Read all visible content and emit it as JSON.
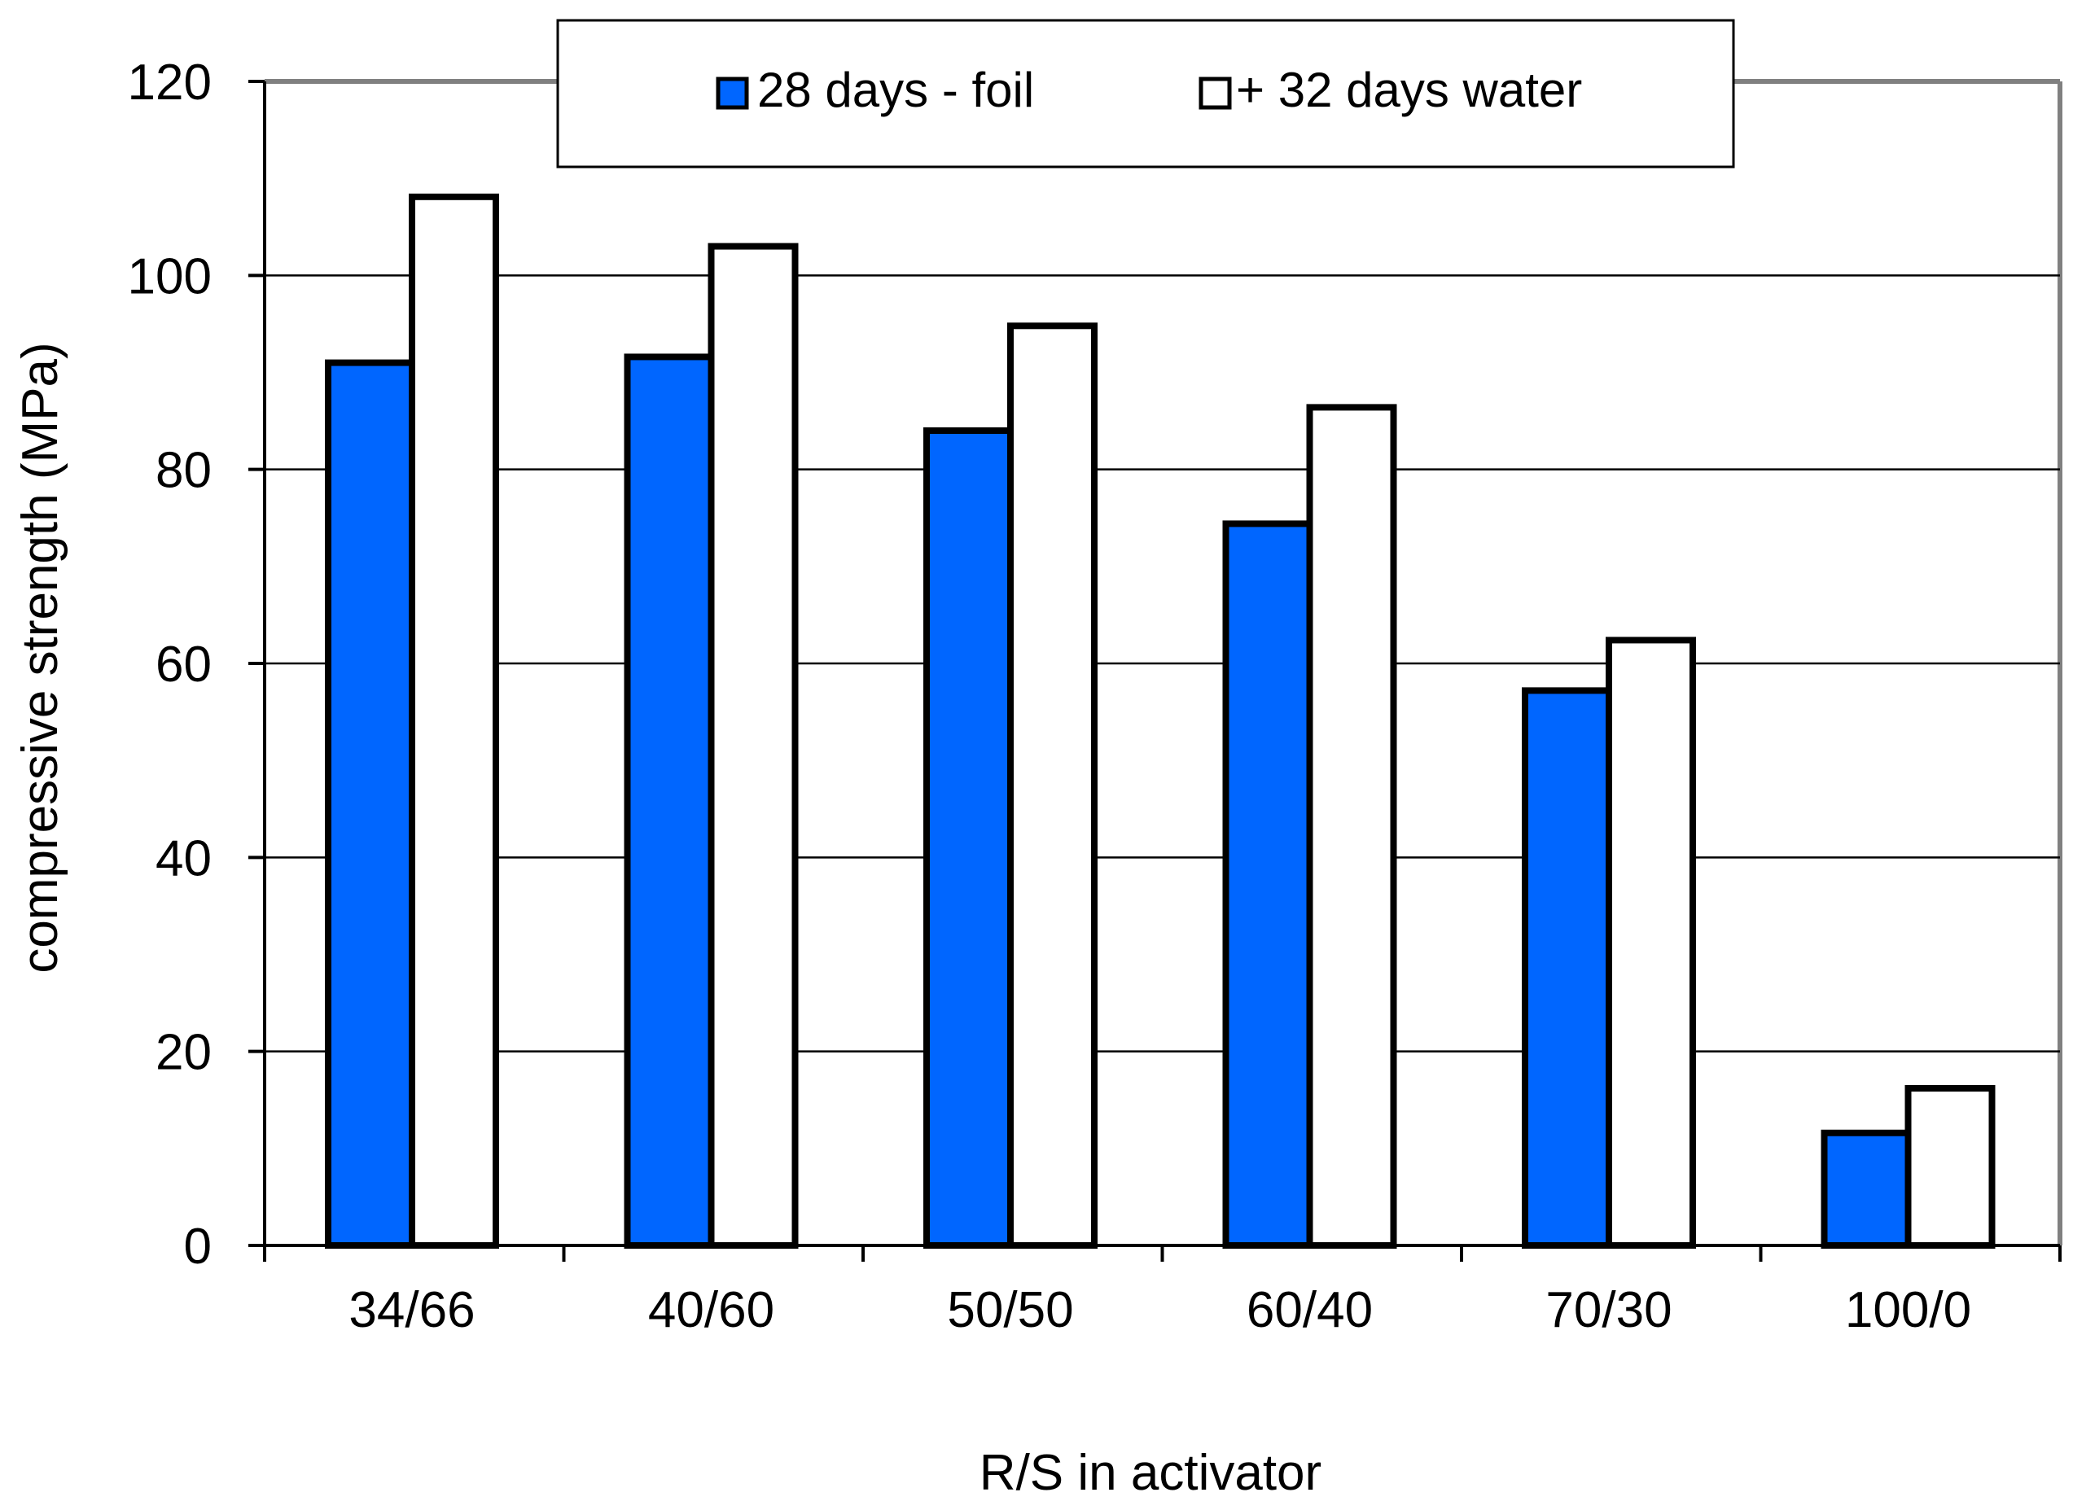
{
  "chart_data": {
    "type": "bar",
    "title": "",
    "xlabel": "R/S in activator",
    "ylabel": "compressive strength (MPa)",
    "ylim": [
      0,
      120
    ],
    "yticks": [
      0,
      20,
      40,
      60,
      80,
      100,
      120
    ],
    "ytick_labels": [
      "0",
      "20",
      "40",
      "60",
      "80",
      "100",
      "120"
    ],
    "grid": true,
    "legend_position": "top-center",
    "categories": [
      "34/66",
      "40/60",
      "50/50",
      "60/40",
      "70/30",
      "100/0"
    ],
    "series": [
      {
        "name": "28 days - foil",
        "color": "#0066FF",
        "values": [
          91,
          91.6,
          84,
          74.4,
          57.2,
          11.6
        ]
      },
      {
        "name": "+ 32 days water",
        "color": "#FFFFFF",
        "values": [
          108.1,
          103,
          94.8,
          86.4,
          62.4,
          16.2
        ]
      }
    ]
  }
}
